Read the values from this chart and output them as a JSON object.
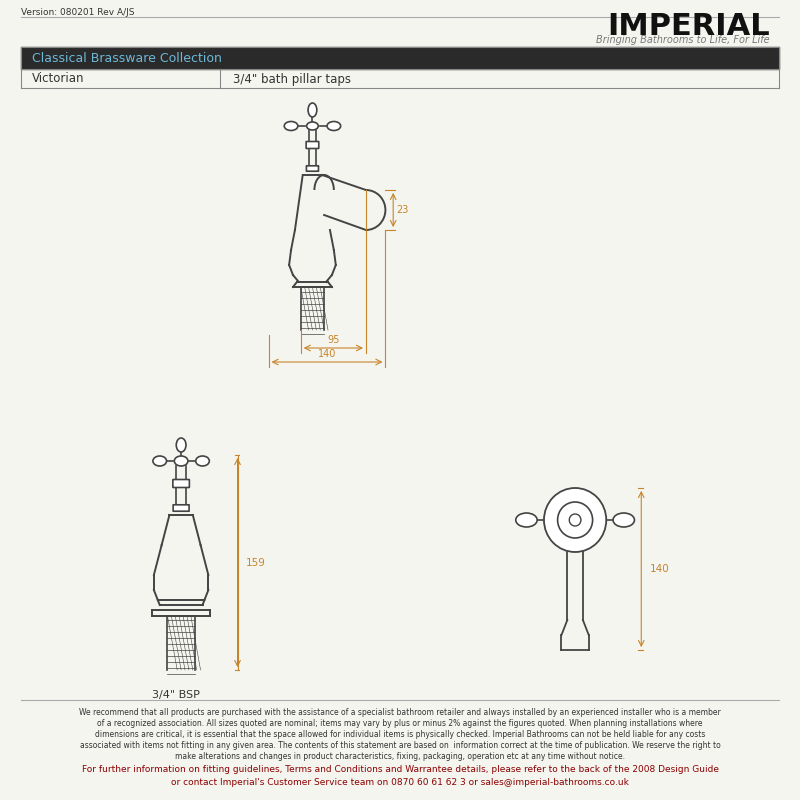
{
  "background_color": "#f5f5f0",
  "border_color": "#cccccc",
  "version_text": "Version: 080201 Rev A/JS",
  "logo_text": "IMPERIAL",
  "logo_subtitle": "Bringing Bathrooms to Life, For Life",
  "header_bg": "#2a2a2a",
  "header_text": "Classical Brassware Collection",
  "header_text_color": "#6cb8d8",
  "row1_col1": "Victorian",
  "row1_col2": "3/4\" bath pillar taps",
  "dim_color": "#c8842a",
  "dim_23": "23",
  "dim_95": "95",
  "dim_140_top": "140",
  "dim_159": "159",
  "dim_140_side": "140",
  "bsp_text": "3/4\" BSP",
  "footer_text1": "We recommend that all products are purchased with the assistance of a specialist bathroom retailer and always installed by an experienced installer who is a member",
  "footer_text2": "of a recognized association. All sizes quoted are nominal; items may vary by plus or minus 2% against the figures quoted. When planning installations where",
  "footer_text3": "dimensions are critical, it is essential that the space allowed for individual items is physically checked. Imperial Bathrooms can not be held liable for any costs",
  "footer_text4": "associated with items not fitting in any given area. The contents of this statement are based on  information correct at the time of publication. We reserve the right to",
  "footer_text5": "make alterations and changes in product characteristics, fixing, packaging, operation etc at any time without notice.",
  "footer_text6": "For further information on fitting guidelines, Terms and Conditions and Warrantee details, please refer to the back of the 2008 Design Guide",
  "footer_text7": "or contact Imperial's Customer Service team on 0870 60 61 62 3 or sales@imperial-bathrooms.co.uk",
  "line_color": "#555555",
  "tap_color": "#444444"
}
